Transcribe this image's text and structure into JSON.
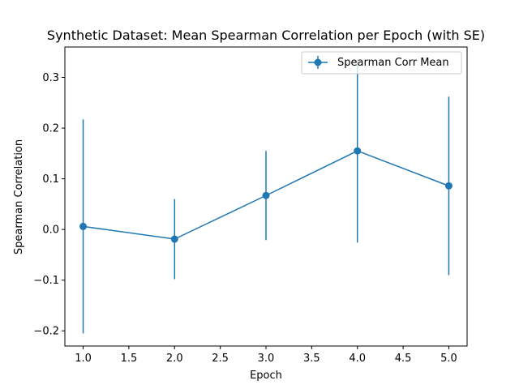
{
  "chart_data": {
    "type": "line",
    "title": "Synthetic Dataset: Mean Spearman Correlation per Epoch (with SE)",
    "xlabel": "Epoch",
    "ylabel": "Spearman Correlation",
    "xlim": [
      0.8,
      5.2
    ],
    "ylim": [
      -0.23,
      0.36
    ],
    "xticks": [
      "1.0",
      "1.5",
      "2.0",
      "2.5",
      "3.0",
      "3.5",
      "4.0",
      "4.5",
      "5.0"
    ],
    "xtick_values": [
      1.0,
      1.5,
      2.0,
      2.5,
      3.0,
      3.5,
      4.0,
      4.5,
      5.0
    ],
    "yticks": [
      "−0.2",
      "−0.1",
      "0.0",
      "0.1",
      "0.2",
      "0.3"
    ],
    "ytick_values": [
      -0.2,
      -0.1,
      0.0,
      0.1,
      0.2,
      0.3
    ],
    "grid": false,
    "legend_position": "top-right",
    "series": [
      {
        "name": "Spearman Corr Mean",
        "color": "#1f77b4",
        "x": [
          1,
          2,
          3,
          4,
          5
        ],
        "y": [
          0.006,
          -0.019,
          0.067,
          0.155,
          0.086
        ],
        "error": [
          0.211,
          0.079,
          0.088,
          0.181,
          0.176
        ]
      }
    ]
  }
}
